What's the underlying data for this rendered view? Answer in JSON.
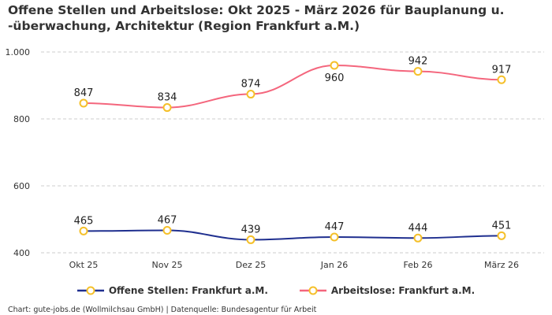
{
  "title": "Offene Stellen und Arbeitslose: Okt 2025 - März 2026 für Bauplanung u. -überwachung, Architektur (Region Frankfurt a.M.)",
  "source": "Chart: gute-jobs.de (Wollmilchsau GmbH) | Datenquelle: Bundesagentur für Arbeit",
  "chart_data": {
    "type": "line",
    "categories": [
      "Okt 25",
      "Nov 25",
      "Dez 25",
      "Jan 26",
      "Feb 26",
      "März 26"
    ],
    "yticks": [
      400,
      600,
      800,
      1000
    ],
    "ytick_labels": [
      "400",
      "600",
      "800",
      "1.000"
    ],
    "ylim": [
      400,
      1000
    ],
    "grid": true,
    "legend": "bottom",
    "marker_color": "#f5c02a",
    "series": [
      {
        "name": "Offene Stellen: Frankfurt a.M.",
        "color": "#1f2f8f",
        "values": [
          465,
          467,
          439,
          447,
          444,
          451
        ]
      },
      {
        "name": "Arbeitslose: Frankfurt a.M.",
        "color": "#f4667d",
        "values": [
          847,
          834,
          874,
          960,
          942,
          917
        ]
      }
    ]
  }
}
